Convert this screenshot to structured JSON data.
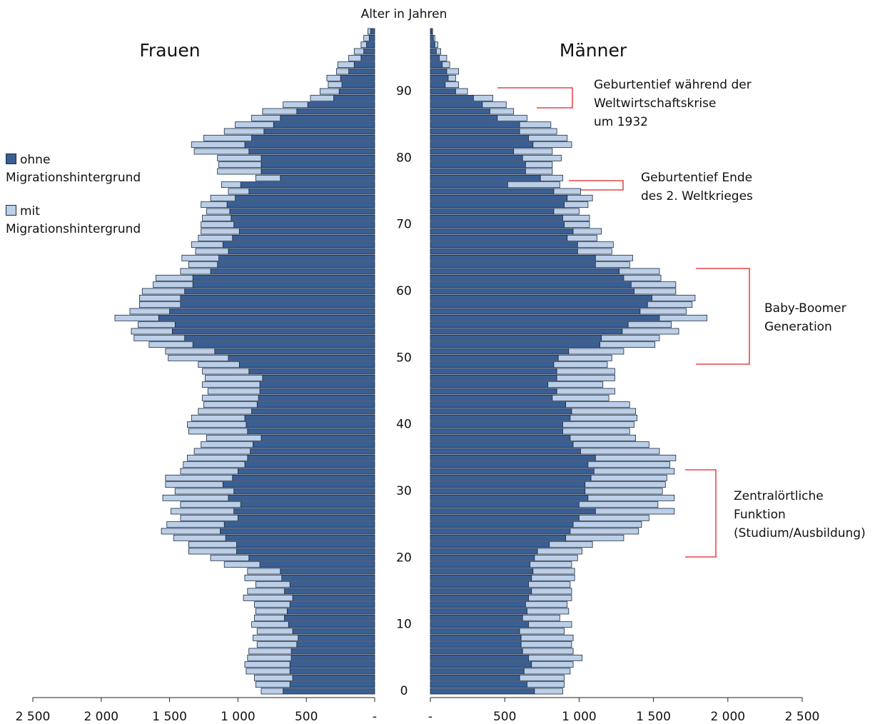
{
  "chart_data": [
    {
      "type": "bar",
      "orientation": "horizontal",
      "stacked": true,
      "x_reversed": true,
      "title": "Frauen",
      "ylabel": "Alter in Jahren",
      "y": [
        0,
        1,
        2,
        3,
        4,
        5,
        6,
        7,
        8,
        9,
        10,
        11,
        12,
        13,
        14,
        15,
        16,
        17,
        18,
        19,
        20,
        21,
        22,
        23,
        24,
        25,
        26,
        27,
        28,
        29,
        30,
        31,
        32,
        33,
        34,
        35,
        36,
        37,
        38,
        39,
        40,
        41,
        42,
        43,
        44,
        45,
        46,
        47,
        48,
        49,
        50,
        51,
        52,
        53,
        54,
        55,
        56,
        57,
        58,
        59,
        60,
        61,
        62,
        63,
        64,
        65,
        66,
        67,
        68,
        69,
        70,
        71,
        72,
        73,
        74,
        75,
        76,
        77,
        78,
        79,
        80,
        81,
        82,
        83,
        84,
        85,
        86,
        87,
        88,
        89,
        90,
        91,
        92,
        93,
        94,
        95,
        96,
        97,
        98,
        99
      ],
      "ylim": [
        -0.5,
        99.5
      ],
      "yticks": [
        0,
        10,
        20,
        30,
        40,
        50,
        60,
        70,
        80,
        90
      ],
      "xlim": [
        0,
        2500
      ],
      "xticks": [
        {
          "value": 2500,
          "label": "2 500"
        },
        {
          "value": 2000,
          "label": "2 000"
        },
        {
          "value": 1500,
          "label": "1 500"
        },
        {
          "value": 1000,
          "label": "1 000"
        },
        500,
        {
          "value": 0,
          "label": "-"
        }
      ],
      "legend": true,
      "series": [
        {
          "name": "ohne Migrationshintergrund",
          "color": "#3a5f94",
          "values": [
            670,
            620,
            600,
            620,
            620,
            610,
            610,
            570,
            560,
            600,
            630,
            660,
            640,
            620,
            600,
            660,
            620,
            680,
            690,
            840,
            920,
            1010,
            1010,
            1090,
            1130,
            1100,
            1000,
            1030,
            980,
            1070,
            1030,
            1110,
            1040,
            1000,
            950,
            930,
            910,
            890,
            830,
            930,
            940,
            950,
            900,
            860,
            850,
            840,
            840,
            820,
            920,
            990,
            1070,
            1170,
            1330,
            1390,
            1480,
            1460,
            1580,
            1500,
            1420,
            1420,
            1390,
            1330,
            1330,
            1200,
            1150,
            1140,
            1070,
            1110,
            1040,
            990,
            1030,
            1050,
            1060,
            1080,
            1020,
            920,
            980,
            690,
            830,
            830,
            830,
            920,
            950,
            900,
            810,
            740,
            690,
            570,
            490,
            300,
            260,
            240,
            250,
            190,
            150,
            100,
            80,
            60,
            40,
            30
          ]
        },
        {
          "name": "mit Migrationshintergrund",
          "color": "#bccfe8",
          "values": [
            160,
            250,
            280,
            320,
            330,
            320,
            310,
            290,
            330,
            260,
            270,
            220,
            230,
            260,
            360,
            270,
            250,
            270,
            240,
            260,
            280,
            350,
            350,
            380,
            430,
            420,
            420,
            460,
            440,
            480,
            430,
            420,
            490,
            420,
            450,
            440,
            410,
            380,
            400,
            430,
            430,
            390,
            390,
            390,
            410,
            380,
            420,
            420,
            340,
            300,
            440,
            360,
            320,
            370,
            300,
            270,
            320,
            290,
            300,
            300,
            310,
            290,
            270,
            220,
            210,
            270,
            240,
            230,
            250,
            280,
            240,
            210,
            170,
            190,
            180,
            150,
            140,
            180,
            320,
            310,
            320,
            400,
            390,
            350,
            290,
            280,
            210,
            250,
            180,
            170,
            140,
            100,
            100,
            90,
            120,
            90,
            70,
            40,
            40,
            20
          ]
        }
      ]
    },
    {
      "type": "bar",
      "orientation": "horizontal",
      "stacked": true,
      "x_reversed": false,
      "title": "Männer",
      "y": [
        0,
        1,
        2,
        3,
        4,
        5,
        6,
        7,
        8,
        9,
        10,
        11,
        12,
        13,
        14,
        15,
        16,
        17,
        18,
        19,
        20,
        21,
        22,
        23,
        24,
        25,
        26,
        27,
        28,
        29,
        30,
        31,
        32,
        33,
        34,
        35,
        36,
        37,
        38,
        39,
        40,
        41,
        42,
        43,
        44,
        45,
        46,
        47,
        48,
        49,
        50,
        51,
        52,
        53,
        54,
        55,
        56,
        57,
        58,
        59,
        60,
        61,
        62,
        63,
        64,
        65,
        66,
        67,
        68,
        69,
        70,
        71,
        72,
        73,
        74,
        75,
        76,
        77,
        78,
        79,
        80,
        81,
        82,
        83,
        84,
        85,
        86,
        87,
        88,
        89,
        90,
        91,
        92,
        93,
        94,
        95,
        96,
        97,
        98,
        99
      ],
      "ylim": [
        -0.5,
        99.5
      ],
      "xlim": [
        0,
        2500
      ],
      "xticks": [
        {
          "value": 0,
          "label": "-"
        },
        500,
        {
          "value": 1000,
          "label": "1 000"
        },
        {
          "value": 1500,
          "label": "1 500"
        },
        {
          "value": 2000,
          "label": "2 000"
        },
        {
          "value": 2500,
          "label": "2 500"
        }
      ],
      "legend": false,
      "series": [
        {
          "name": "ohne Migrationshintergrund",
          "color": "#3a5f94",
          "values": [
            700,
            650,
            600,
            630,
            680,
            660,
            620,
            610,
            610,
            600,
            660,
            620,
            650,
            640,
            660,
            680,
            660,
            680,
            690,
            670,
            700,
            720,
            800,
            910,
            940,
            960,
            1000,
            1110,
            1000,
            1060,
            1040,
            1040,
            1080,
            1100,
            1060,
            1110,
            1010,
            960,
            940,
            890,
            890,
            940,
            950,
            910,
            820,
            850,
            790,
            850,
            850,
            830,
            860,
            930,
            1140,
            1150,
            1290,
            1330,
            1540,
            1410,
            1460,
            1490,
            1370,
            1350,
            1300,
            1270,
            1110,
            1110,
            990,
            990,
            920,
            960,
            900,
            890,
            830,
            900,
            920,
            830,
            520,
            740,
            640,
            640,
            620,
            560,
            690,
            660,
            600,
            600,
            450,
            400,
            350,
            290,
            170,
            100,
            120,
            110,
            80,
            60,
            40,
            30,
            20,
            10
          ]
        },
        {
          "name": "mit Migrationshintergrund",
          "color": "#bccfe8",
          "values": [
            190,
            250,
            300,
            310,
            280,
            360,
            340,
            340,
            350,
            300,
            290,
            250,
            280,
            280,
            290,
            270,
            280,
            290,
            280,
            280,
            290,
            300,
            290,
            390,
            460,
            460,
            470,
            530,
            530,
            580,
            520,
            540,
            510,
            540,
            550,
            540,
            530,
            510,
            440,
            450,
            480,
            450,
            430,
            430,
            380,
            390,
            370,
            390,
            390,
            360,
            360,
            370,
            370,
            390,
            380,
            290,
            320,
            310,
            300,
            290,
            280,
            300,
            250,
            270,
            230,
            250,
            230,
            240,
            200,
            190,
            170,
            180,
            170,
            160,
            170,
            180,
            350,
            150,
            180,
            180,
            260,
            260,
            260,
            260,
            250,
            210,
            200,
            160,
            160,
            130,
            80,
            90,
            50,
            80,
            50,
            50,
            30,
            20,
            10,
            5
          ]
        }
      ],
      "annotations": [
        {
          "lines": [
            "Geburtentief während der",
            "Weltwirtschaftskrise",
            "um 1932"
          ]
        },
        {
          "lines": [
            "Geburtentief Ende",
            "des 2. Weltkrieges"
          ]
        },
        {
          "lines": [
            "Baby-Boomer",
            "Generation"
          ]
        },
        {
          "lines": [
            "Zentralörtliche",
            "Funktion",
            "(Studium/Ausbildung)"
          ]
        }
      ]
    }
  ]
}
